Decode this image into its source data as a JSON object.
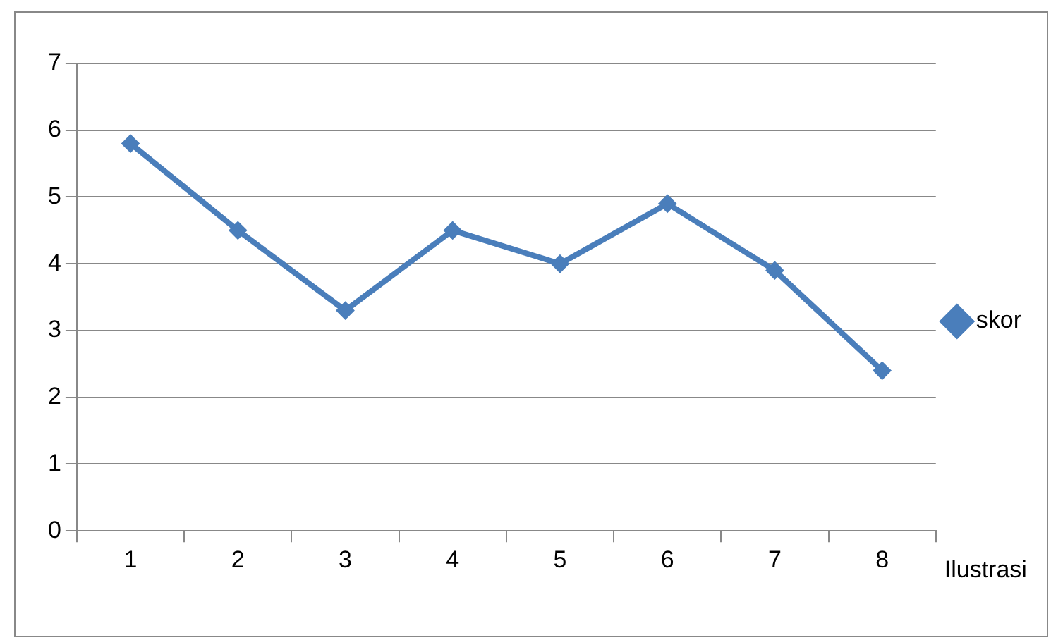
{
  "chart_data": {
    "type": "line",
    "xlabel": "Ilustrasi",
    "categories": [
      "1",
      "2",
      "3",
      "4",
      "5",
      "6",
      "7",
      "8"
    ],
    "series": [
      {
        "name": "skor",
        "color": "#4a7ebb",
        "values": [
          5.8,
          4.5,
          3.3,
          4.5,
          4.0,
          4.9,
          3.9,
          2.4
        ]
      }
    ],
    "ylim": [
      0,
      7
    ],
    "yticks": [
      0,
      1,
      2,
      3,
      4,
      5,
      6,
      7
    ],
    "grid": "y",
    "legend": "right",
    "marker": "diamond",
    "line_style": "solid"
  }
}
